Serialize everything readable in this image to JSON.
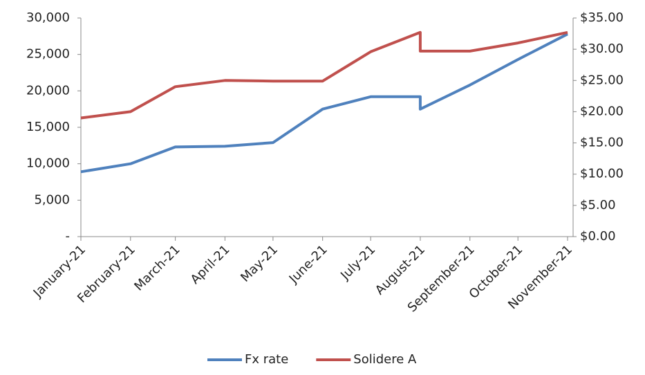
{
  "chart_data": {
    "type": "line",
    "x": [
      "2021-01",
      "2021-02",
      "2021-03",
      "2021-04",
      "2021-05",
      "2021-06",
      "2021-07",
      "2021-08",
      "2021-08",
      "2021-09",
      "2021-10",
      "2021-11"
    ],
    "xlim": [
      "2021-01",
      "2021-11"
    ],
    "xticks": [
      {
        "value": "2021-01",
        "label": "January-21"
      },
      {
        "value": "2021-02",
        "label": "February-21"
      },
      {
        "value": "2021-03",
        "label": "March-21"
      },
      {
        "value": "2021-04",
        "label": "April-21"
      },
      {
        "value": "2021-05",
        "label": "May-21"
      },
      {
        "value": "2021-06",
        "label": "June-21"
      },
      {
        "value": "2021-07",
        "label": "July-21"
      },
      {
        "value": "2021-08",
        "label": "August-21"
      },
      {
        "value": "2021-09",
        "label": "September-21"
      },
      {
        "value": "2021-10",
        "label": "October-21"
      },
      {
        "value": "2021-11",
        "label": "November-21"
      }
    ],
    "ylim": [
      0,
      30000
    ],
    "yticks": [
      {
        "value": 0,
        "label": "-"
      },
      {
        "value": 5000,
        "label": "5,000"
      },
      {
        "value": 10000,
        "label": "10,000"
      },
      {
        "value": 15000,
        "label": "15,000"
      },
      {
        "value": 20000,
        "label": "20,000"
      },
      {
        "value": 25000,
        "label": "25,000"
      },
      {
        "value": 30000,
        "label": "30,000"
      }
    ],
    "y2lim": [
      0,
      35
    ],
    "y2ticks": [
      {
        "value": 0,
        "label": "$0.00"
      },
      {
        "value": 5,
        "label": "$5.00"
      },
      {
        "value": 10,
        "label": "$10.00"
      },
      {
        "value": 15,
        "label": "$15.00"
      },
      {
        "value": 20,
        "label": "$20.00"
      },
      {
        "value": 25,
        "label": "$25.00"
      },
      {
        "value": 30,
        "label": "$30.00"
      },
      {
        "value": 35,
        "label": "$35.00"
      }
    ],
    "series": [
      {
        "name": "Fx rate",
        "color": "#4f81bd",
        "values": [
          8900,
          10000,
          12300,
          12400,
          12900,
          17500,
          19200,
          19200,
          17500,
          20800,
          24300,
          27800
        ]
      },
      {
        "name": "Solidere A",
        "color": "#c0504d",
        "axis": "y2",
        "values": [
          19,
          20,
          24,
          25,
          24.9,
          24.9,
          29.6,
          32.7,
          29.7,
          29.7,
          31,
          32.7
        ]
      }
    ],
    "legend": "bottom"
  }
}
